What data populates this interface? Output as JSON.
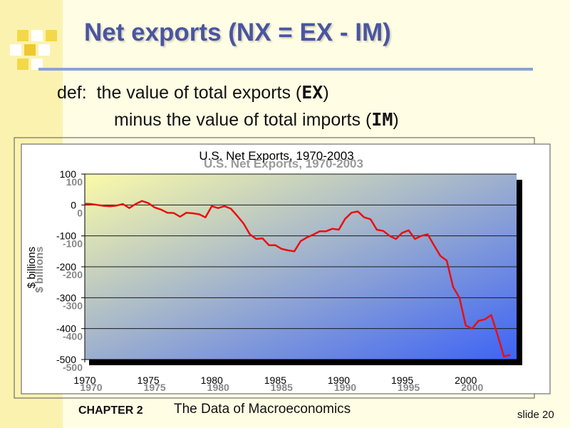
{
  "slide": {
    "title": "Net exports  (NX = EX - IM)",
    "definition": {
      "line1_prefix": "def:  the value of total exports (",
      "line1_term": "EX",
      "line1_suffix": ")",
      "line2_prefix": "minus the value of total imports (",
      "line2_term": "IM",
      "line2_suffix": ")"
    },
    "footer": {
      "chapter": "CHAPTER 2",
      "book_title": "The Data of Macroeconomics",
      "slide_number": "slide 20"
    }
  },
  "colors": {
    "title": "#4a55a0",
    "accent_bar": "#fcf2b0",
    "gradient_start": "#fbfba8",
    "gradient_end": "#3d63f5",
    "line": "#e81010"
  },
  "chart_data": {
    "type": "line",
    "title": "U.S. Net Exports, 1970-2003",
    "xlabel": "",
    "ylabel": "$ billions",
    "xlim": [
      1970,
      2004
    ],
    "ylim": [
      -500,
      100
    ],
    "x_ticks": [
      1970,
      1975,
      1980,
      1985,
      1990,
      1995,
      2000
    ],
    "y_ticks": [
      100,
      0,
      -100,
      -200,
      -300,
      -400,
      -500
    ],
    "grid": true,
    "legend": "none",
    "series": [
      {
        "x": [
          1970,
          1970.5,
          1971,
          1971.5,
          1972,
          1972.5,
          1973,
          1973.5,
          1974,
          1974.5,
          1975,
          1975.5,
          1976,
          1976.5,
          1977,
          1977.5,
          1978,
          1978.5,
          1979,
          1979.5,
          1980,
          1980.5,
          1981,
          1981.5,
          1982,
          1982.5,
          1983,
          1983.5,
          1984,
          1984.5,
          1985,
          1985.5,
          1986,
          1986.5,
          1987,
          1987.5,
          1988,
          1988.5,
          1989,
          1989.5,
          1990,
          1990.5,
          1991,
          1991.5,
          1992,
          1992.5,
          1993,
          1993.5,
          1994,
          1994.5,
          1995,
          1995.5,
          1996,
          1996.5,
          1997,
          1997.5,
          1998,
          1998.5,
          1999,
          1999.5,
          2000,
          2000.5,
          2001,
          2001.5,
          2002,
          2002.5,
          2003,
          2003.5
        ],
        "y": [
          4,
          3,
          0,
          -3,
          -4,
          -2,
          3,
          -10,
          3,
          13,
          6,
          -8,
          -15,
          -25,
          -26,
          -38,
          -25,
          -27,
          -30,
          -40,
          -4,
          -10,
          -4,
          -12,
          -35,
          -60,
          -95,
          -110,
          -108,
          -130,
          -130,
          -142,
          -147,
          -150,
          -117,
          -105,
          -96,
          -85,
          -85,
          -77,
          -80,
          -45,
          -25,
          -21,
          -40,
          -46,
          -80,
          -84,
          -100,
          -110,
          -90,
          -82,
          -110,
          -100,
          -95,
          -130,
          -165,
          -180,
          -265,
          -300,
          -390,
          -400,
          -375,
          -370,
          -356,
          -420,
          -490,
          -485
        ]
      }
    ]
  }
}
